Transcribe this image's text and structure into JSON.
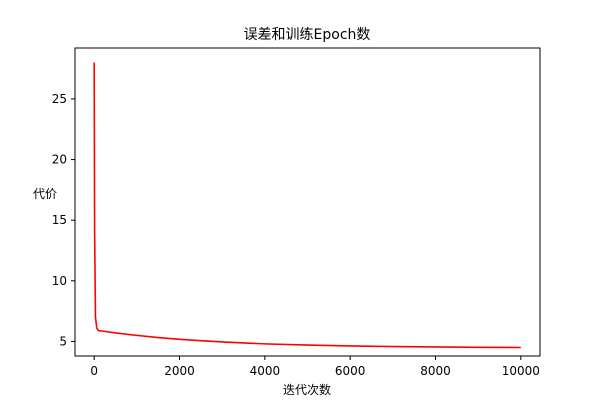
{
  "chart_data": {
    "type": "line",
    "title": "误差和训练Epoch数",
    "xlabel": "迭代次数",
    "ylabel": "代价",
    "xlim": [
      -450,
      10450
    ],
    "ylim": [
      3.8,
      29.2
    ],
    "xticks": [
      0,
      2000,
      4000,
      6000,
      8000,
      10000
    ],
    "yticks": [
      5,
      10,
      15,
      20,
      25
    ],
    "grid": false,
    "legend": "none",
    "series": [
      {
        "color": "#ff0000",
        "x": [
          0,
          10,
          30,
          60,
          100,
          200,
          500,
          1000,
          1500,
          2000,
          2500,
          3000,
          3500,
          4000,
          5000,
          6000,
          7000,
          8000,
          9000,
          10000
        ],
        "y": [
          28.0,
          14.0,
          7.0,
          6.1,
          5.9,
          5.85,
          5.7,
          5.5,
          5.32,
          5.18,
          5.06,
          4.96,
          4.88,
          4.8,
          4.7,
          4.63,
          4.58,
          4.55,
          4.52,
          4.5
        ]
      }
    ]
  }
}
